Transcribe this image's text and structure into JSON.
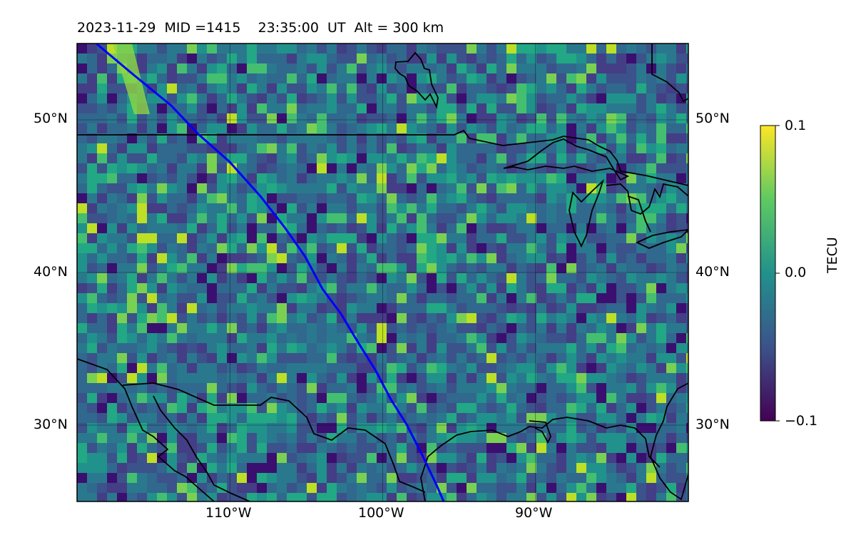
{
  "title": "2023-11-29  MID =1415    23:35:00  UT  Alt = 300 km",
  "map": {
    "lat_range": [
      25,
      55
    ],
    "lon_range": [
      -120,
      -80
    ],
    "lat_ticks": [
      {
        "value": 50,
        "label": "50°N"
      },
      {
        "value": 40,
        "label": "40°N"
      },
      {
        "value": 30,
        "label": "30°N"
      }
    ],
    "lon_ticks": [
      {
        "value": -110,
        "label": "110°W"
      },
      {
        "value": -100,
        "label": "100°W"
      },
      {
        "value": -90,
        "label": "90°W"
      }
    ],
    "track_color": "#0000ff",
    "colormap": "viridis"
  },
  "colorbar": {
    "label": "TECU",
    "ticks": [
      {
        "value": 0.1,
        "label": "0.1"
      },
      {
        "value": 0.0,
        "label": "0.0"
      },
      {
        "value": -0.1,
        "label": "−0.1"
      }
    ],
    "range": [
      -0.1,
      0.1
    ]
  }
}
